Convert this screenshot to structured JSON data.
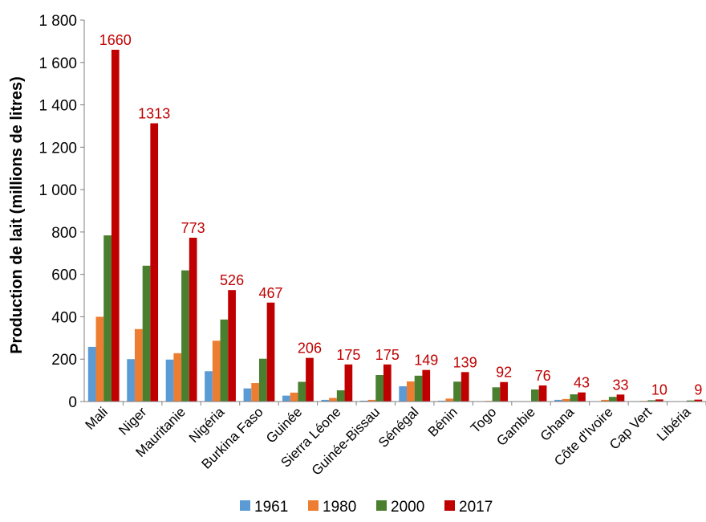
{
  "chart_data": {
    "type": "bar",
    "title": "",
    "xlabel": "",
    "ylabel": "Production de lait (millions de litres)",
    "ylim": [
      0,
      1800
    ],
    "yticks": [
      0,
      200,
      400,
      600,
      800,
      1000,
      1200,
      1400,
      1600,
      1800
    ],
    "ytick_labels": [
      "0",
      "200",
      "400",
      "600",
      "800",
      "1 000",
      "1 200",
      "1 400",
      "1 600",
      "1 800"
    ],
    "grid": false,
    "legend_position": "bottom",
    "categories": [
      "Mali",
      "Niger",
      "Mauritanie",
      "Nigéria",
      "Burkina Faso",
      "Guinée",
      "Sierra Léone",
      "Guinée-Bissau",
      "Sénégal",
      "Bénin",
      "Togo",
      "Gambie",
      "Ghana",
      "Côte d'Ivoire",
      "Cap Vert",
      "Libéria"
    ],
    "series": [
      {
        "name": "1961",
        "color": "#5b9bd5",
        "values": [
          258,
          200,
          198,
          143,
          62,
          28,
          8,
          4,
          72,
          4,
          2,
          2,
          8,
          2,
          2,
          1
        ]
      },
      {
        "name": "1980",
        "color": "#ed7d31",
        "values": [
          400,
          342,
          228,
          287,
          87,
          42,
          17,
          8,
          95,
          14,
          3,
          2,
          12,
          8,
          3,
          1
        ]
      },
      {
        "name": "2000",
        "color": "#4a7f2f",
        "values": [
          784,
          641,
          619,
          387,
          202,
          93,
          53,
          125,
          122,
          94,
          67,
          57,
          34,
          22,
          6,
          5
        ]
      },
      {
        "name": "2017",
        "color": "#c00000",
        "values": [
          1660,
          1313,
          773,
          526,
          467,
          206,
          175,
          175,
          149,
          139,
          92,
          76,
          43,
          33,
          10,
          9
        ]
      }
    ],
    "data_labels": [
      "1660",
      "1313",
      "773",
      "526",
      "467",
      "206",
      "175",
      "175",
      "149",
      "139",
      "92",
      "76",
      "43",
      "33",
      "10",
      "9"
    ],
    "data_label_color": "#c00000",
    "axis_color": "#7f7f7f"
  }
}
